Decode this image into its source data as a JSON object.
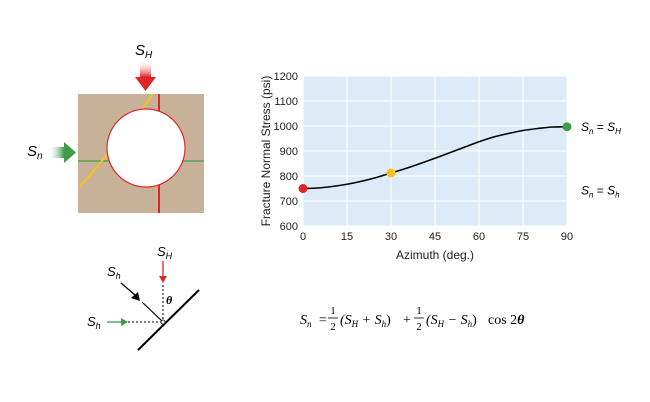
{
  "diagram": {
    "top_arrow_label": "S",
    "top_arrow_sub": "H",
    "left_arrow_label": "S",
    "left_arrow_sub": "n"
  },
  "fracture_diagram": {
    "sh_diag_label": "S",
    "sh_diag_sub": "h",
    "sH_label": "S",
    "sH_sub": "H",
    "sh_left_label": "S",
    "sh_left_sub": "h",
    "angle_label": "θ"
  },
  "chart_data": {
    "type": "line",
    "xlabel": "Azimuth (deg.)",
    "ylabel": "Fracture Normal Stress (psi)",
    "xlim": [
      0,
      90
    ],
    "ylim": [
      600,
      1200
    ],
    "xticks": [
      0,
      15,
      30,
      45,
      60,
      75,
      90
    ],
    "yticks": [
      600,
      700,
      800,
      900,
      1000,
      1100,
      1200
    ],
    "grid": true,
    "background": "#dcebf7",
    "curve": {
      "x": [
        0,
        5,
        10,
        15,
        20,
        25,
        30,
        35,
        40,
        45,
        50,
        55,
        60,
        65,
        70,
        75,
        80,
        85,
        90
      ],
      "y": [
        750,
        752,
        758,
        767,
        779,
        794,
        812,
        830,
        850,
        871,
        893,
        915,
        937,
        956,
        970,
        982,
        990,
        996,
        997
      ],
      "color": "#000000"
    },
    "points": [
      {
        "x": 0,
        "y": 750,
        "color": "#e0252a"
      },
      {
        "x": 30,
        "y": 812,
        "color": "#f2c21d"
      },
      {
        "x": 90,
        "y": 997,
        "color": "#3f9a4a"
      }
    ],
    "annotations": [
      {
        "y": 997,
        "text_left": "S",
        "sub_left": "n",
        "eq": "=",
        "text_right": "S",
        "sub_right": "H"
      },
      {
        "y": 742,
        "text_left": "S",
        "sub_left": "n",
        "eq": "=",
        "text_right": "S",
        "sub_right": "h"
      }
    ]
  },
  "equation": {
    "lhs": "S",
    "lhs_sub": "n",
    "eq": "=",
    "half_num": "1",
    "half_den": "2",
    "term1": "(S",
    "term1_sub1": "H",
    "plus": " + S",
    "term1_sub2": "h",
    "close1": ")",
    "plus2": "+",
    "term2": "(S",
    "term2_sub1": "H",
    "minus": " − S",
    "term2_sub2": "h",
    "close2": ")",
    "cos": "cos 2",
    "theta": "θ"
  },
  "colors": {
    "block": "#c7b299",
    "red": "#e0252a",
    "green": "#3f9a4a",
    "yellow": "#f2c21d"
  }
}
